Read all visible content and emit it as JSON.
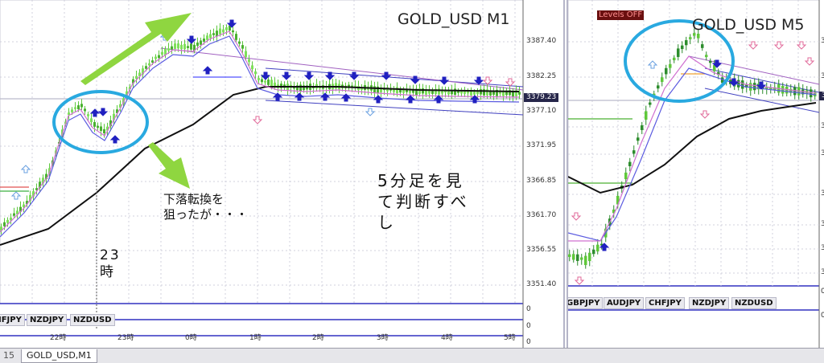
{
  "left_chart": {
    "title": "GOLD_USD M1",
    "price_badge": "3379.23",
    "y_ticks": [
      "3387.40",
      "3382.25",
      "3377.10",
      "3371.95",
      "3366.85",
      "3361.70",
      "3356.55",
      "3351.40"
    ],
    "indicator_ticks": [
      "0",
      "0",
      "0"
    ],
    "x_ticks": [
      "22時",
      "23時",
      "0時",
      "1時",
      "2時",
      "3時",
      "4時",
      "5時"
    ],
    "symbol_tabs": [
      "CHFJPY",
      "NZDJPY",
      "NZDUSD"
    ],
    "annotations": {
      "reversal_line1": "下落転換を",
      "reversal_line2": "狙ったが・・・",
      "time_line1": "23",
      "time_line2": "時",
      "advice_line1": "5分足を見",
      "advice_line2": "て判断すべ",
      "advice_line3": "し"
    },
    "colors": {
      "candle": "#7ee05a",
      "ma_slow": "#111111",
      "ma_mid": "#5b5be0",
      "ma_fast": "#d070d0",
      "circle": "#29a9e0",
      "arrow": "#8fd640"
    }
  },
  "right_chart": {
    "title": "GOLD_USD M5",
    "levels_label": "Levels OFF",
    "price_badge": "3",
    "y_ticks": [
      "3",
      "3",
      "3",
      "3",
      "3",
      "3",
      "3",
      "3"
    ],
    "indicator_ticks": [
      "0",
      "0"
    ],
    "symbol_tabs": [
      "GBPJPY",
      "AUDJPY",
      "CHFJPY",
      "NZDJPY",
      "NZDUSD"
    ]
  },
  "bottom_tabs": [
    "15",
    "GOLD_USD,M1"
  ]
}
